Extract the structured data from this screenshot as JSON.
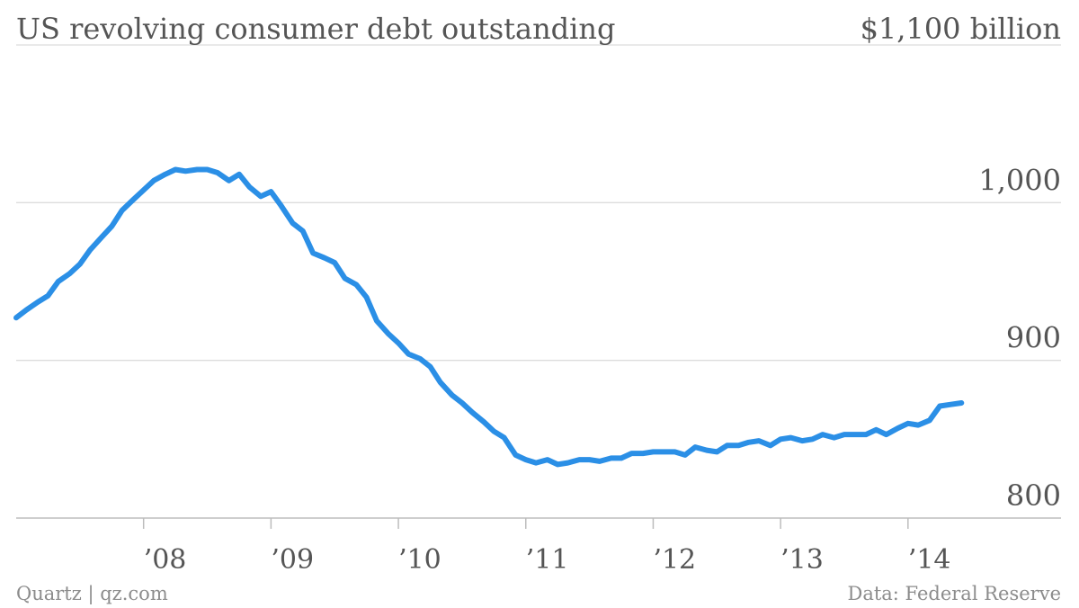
{
  "title": "US revolving consumer debt outstanding",
  "footer": {
    "left": "Quartz | qz.com",
    "right": "Data: Federal Reserve"
  },
  "colors": {
    "series": "#2b8fe6",
    "gridline": "#dcdcdc",
    "text": "#555555",
    "footer_text": "#8c8c8c"
  },
  "chart_data": {
    "type": "line",
    "title": "US revolving consumer debt outstanding",
    "xlabel": "",
    "ylabel": "",
    "unit": "$ billion",
    "ylim": [
      800,
      1100
    ],
    "y_ticks": [
      {
        "value": 1100,
        "label": "$1,100 billion"
      },
      {
        "value": 1000,
        "label": "1,000"
      },
      {
        "value": 900,
        "label": "900"
      },
      {
        "value": 800,
        "label": "800"
      }
    ],
    "xlim": [
      2007.0,
      2014.58
    ],
    "x_ticks": [
      {
        "value": 2008,
        "label": "’08"
      },
      {
        "value": 2009,
        "label": "’09"
      },
      {
        "value": 2010,
        "label": "’10"
      },
      {
        "value": 2011,
        "label": "’11"
      },
      {
        "value": 2012,
        "label": "’12"
      },
      {
        "value": 2013,
        "label": "’13"
      },
      {
        "value": 2014,
        "label": "’14"
      }
    ],
    "grid": true,
    "legend": "none",
    "series": [
      {
        "values": [
          [
            2007.0,
            927
          ],
          [
            2007.08,
            932
          ],
          [
            2007.17,
            937
          ],
          [
            2007.25,
            941
          ],
          [
            2007.33,
            950
          ],
          [
            2007.42,
            955
          ],
          [
            2007.5,
            961
          ],
          [
            2007.58,
            970
          ],
          [
            2007.67,
            978
          ],
          [
            2007.75,
            985
          ],
          [
            2007.83,
            995
          ],
          [
            2007.92,
            1002
          ],
          [
            2008.0,
            1008
          ],
          [
            2008.08,
            1014
          ],
          [
            2008.17,
            1018
          ],
          [
            2008.25,
            1021
          ],
          [
            2008.33,
            1020
          ],
          [
            2008.42,
            1021
          ],
          [
            2008.5,
            1021
          ],
          [
            2008.58,
            1019
          ],
          [
            2008.67,
            1014
          ],
          [
            2008.75,
            1018
          ],
          [
            2008.83,
            1010
          ],
          [
            2008.92,
            1004
          ],
          [
            2009.0,
            1007
          ],
          [
            2009.08,
            998
          ],
          [
            2009.17,
            987
          ],
          [
            2009.25,
            982
          ],
          [
            2009.33,
            968
          ],
          [
            2009.42,
            965
          ],
          [
            2009.5,
            962
          ],
          [
            2009.58,
            952
          ],
          [
            2009.67,
            948
          ],
          [
            2009.75,
            940
          ],
          [
            2009.83,
            925
          ],
          [
            2009.92,
            917
          ],
          [
            2010.0,
            911
          ],
          [
            2010.08,
            904
          ],
          [
            2010.17,
            901
          ],
          [
            2010.25,
            896
          ],
          [
            2010.33,
            886
          ],
          [
            2010.42,
            878
          ],
          [
            2010.5,
            873
          ],
          [
            2010.58,
            867
          ],
          [
            2010.67,
            861
          ],
          [
            2010.75,
            855
          ],
          [
            2010.83,
            851
          ],
          [
            2010.92,
            840
          ],
          [
            2011.0,
            837
          ],
          [
            2011.08,
            835
          ],
          [
            2011.17,
            837
          ],
          [
            2011.25,
            834
          ],
          [
            2011.33,
            835
          ],
          [
            2011.42,
            837
          ],
          [
            2011.5,
            837
          ],
          [
            2011.58,
            836
          ],
          [
            2011.67,
            838
          ],
          [
            2011.75,
            838
          ],
          [
            2011.83,
            841
          ],
          [
            2011.92,
            841
          ],
          [
            2012.0,
            842
          ],
          [
            2012.08,
            842
          ],
          [
            2012.17,
            842
          ],
          [
            2012.25,
            840
          ],
          [
            2012.33,
            845
          ],
          [
            2012.42,
            843
          ],
          [
            2012.5,
            842
          ],
          [
            2012.58,
            846
          ],
          [
            2012.67,
            846
          ],
          [
            2012.75,
            848
          ],
          [
            2012.83,
            849
          ],
          [
            2012.92,
            846
          ],
          [
            2013.0,
            850
          ],
          [
            2013.08,
            851
          ],
          [
            2013.17,
            849
          ],
          [
            2013.25,
            850
          ],
          [
            2013.33,
            853
          ],
          [
            2013.42,
            851
          ],
          [
            2013.5,
            853
          ],
          [
            2013.58,
            853
          ],
          [
            2013.67,
            853
          ],
          [
            2013.75,
            856
          ],
          [
            2013.83,
            853
          ],
          [
            2013.92,
            857
          ],
          [
            2014.0,
            860
          ],
          [
            2014.08,
            859
          ],
          [
            2014.17,
            862
          ],
          [
            2014.25,
            871
          ],
          [
            2014.33,
            872
          ],
          [
            2014.42,
            873
          ]
        ]
      }
    ]
  }
}
